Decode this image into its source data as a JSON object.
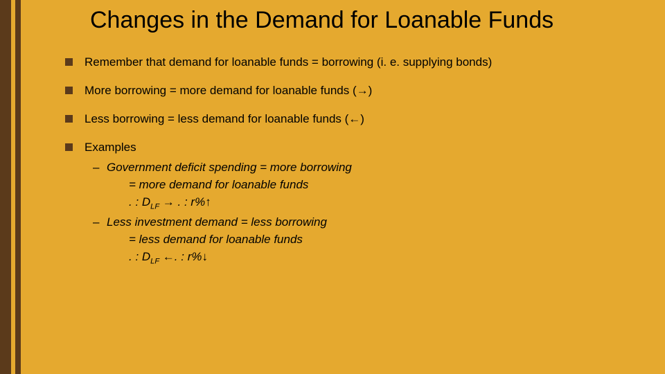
{
  "colors": {
    "background": "#e5a92f",
    "stripe_dark": "#5b3a1b",
    "stripe_gap": "#e5a92f",
    "text": "#000000",
    "bullet": "#5b3a1b"
  },
  "layout": {
    "stripe1_width": 16,
    "gap_width": 6,
    "stripe2_width": 8
  },
  "title": "Changes in the Demand for Loanable Funds",
  "bullets": [
    {
      "text": "Remember that demand for loanable funds = borrowing (i. e. supplying bonds)"
    },
    {
      "text": "More borrowing = more demand for loanable funds (→)"
    },
    {
      "text": "Less borrowing = less demand for loanable    funds (←)"
    },
    {
      "text": "Examples",
      "sub": [
        {
          "lead": "Government deficit spending = more borrowing",
          "lines": [
            "= more demand for loanable funds",
            {
              "prefix": ". : D",
              "sub": "LF",
              "mid": " → . : r%",
              "suffix": "↑"
            }
          ]
        },
        {
          "lead": "Less investment demand = less borrowing",
          "lines": [
            "= less demand for loanable funds",
            {
              "prefix": ". : D",
              "sub": "LF",
              "mid": " ←. : r%",
              "suffix": "↓"
            }
          ]
        }
      ]
    }
  ]
}
